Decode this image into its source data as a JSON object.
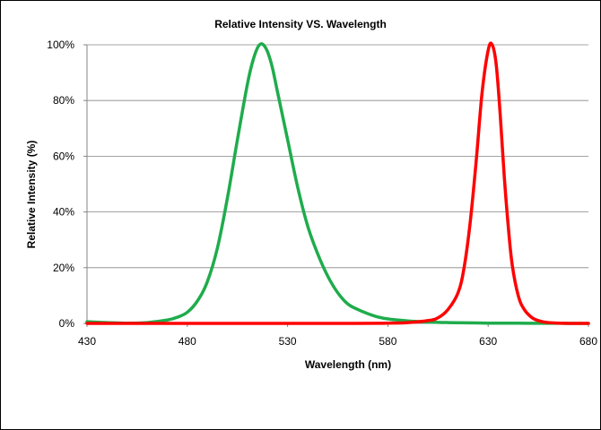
{
  "chart_data": {
    "type": "line",
    "title": "Relative Intensity VS. Wavelength",
    "xlabel": "Wavelength (nm)",
    "ylabel": "Relative Intensity (%)",
    "xlim": [
      430,
      680
    ],
    "ylim": [
      0,
      100
    ],
    "x_ticks": [
      "430",
      "480",
      "530",
      "580",
      "630",
      "680"
    ],
    "y_ticks": [
      "0%",
      "20%",
      "40%",
      "60%",
      "80%",
      "100%"
    ],
    "grid": "horizontal",
    "legend": "none",
    "series": [
      {
        "color": "#1fac4c",
        "x": [
          430,
          440,
          450,
          460,
          470,
          475,
          480,
          485,
          490,
          495,
          500,
          505,
          510,
          513,
          516,
          519,
          522,
          525,
          530,
          535,
          540,
          545,
          550,
          555,
          560,
          565,
          570,
          575,
          580,
          590,
          600,
          610,
          620,
          630,
          640,
          650,
          660,
          670,
          680
        ],
        "y": [
          0.6,
          0.3,
          0.1,
          0.3,
          1.2,
          2.2,
          4,
          8,
          15,
          27,
          45,
          66,
          86,
          95,
          100,
          99,
          93,
          83,
          66,
          49,
          35,
          25,
          17,
          11,
          7,
          5,
          3.5,
          2.3,
          1.6,
          0.9,
          0.5,
          0.3,
          0.2,
          0.1,
          0.1,
          0.05,
          0.03,
          0.02,
          0.02
        ]
      },
      {
        "color": "#ff0000",
        "x": [
          430,
          560,
          580,
          590,
          600,
          605,
          610,
          615,
          618,
          621,
          624,
          627,
          630,
          632,
          634,
          636,
          638,
          640,
          642,
          645,
          648,
          652,
          656,
          660,
          665,
          670,
          680
        ],
        "y": [
          0,
          0,
          0.1,
          0.3,
          1,
          2,
          5,
          11,
          20,
          36,
          58,
          83,
          98,
          100,
          93,
          75,
          53,
          35,
          21,
          10,
          5,
          2,
          0.8,
          0.3,
          0.1,
          0,
          0
        ]
      }
    ]
  }
}
